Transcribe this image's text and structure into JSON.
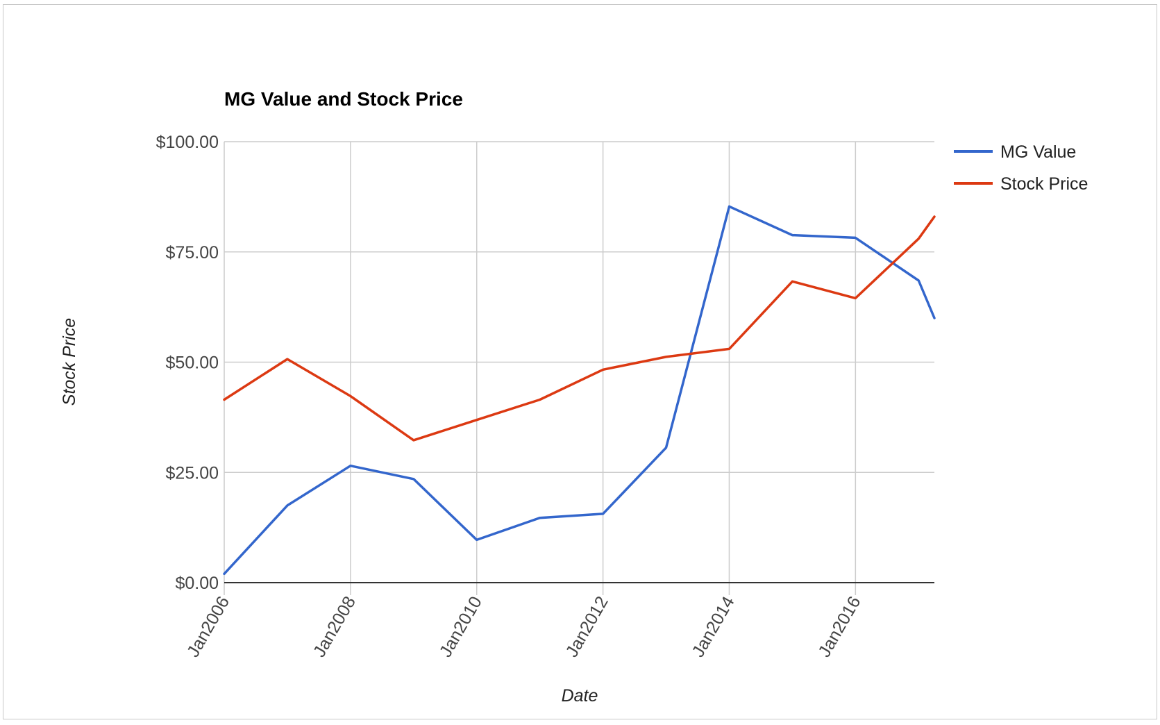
{
  "chart_data": {
    "type": "line",
    "title": "MG Value and Stock Price",
    "xlabel": "Date",
    "ylabel": "Stock Price",
    "ylim": [
      0,
      100
    ],
    "yticks": [
      0,
      25,
      50,
      75,
      100
    ],
    "ytick_labels": [
      "$0.00",
      "$25.00",
      "$50.00",
      "$75.00",
      "$100.00"
    ],
    "xlim": [
      "2006-01",
      "2017-04"
    ],
    "xticks": [
      "2006-01",
      "2008-01",
      "2010-01",
      "2012-01",
      "2014-01",
      "2016-01"
    ],
    "xtick_labels": [
      "Jan2006",
      "Jan2008",
      "Jan2010",
      "Jan2012",
      "Jan2014",
      "Jan2016"
    ],
    "grid": true,
    "legend_position": "right",
    "x": [
      "2006-01",
      "2007-01",
      "2008-01",
      "2009-01",
      "2010-01",
      "2011-01",
      "2012-01",
      "2013-01",
      "2014-01",
      "2015-01",
      "2016-01",
      "2017-01",
      "2017-04"
    ],
    "series": [
      {
        "name": "MG Value",
        "color": "#3366cc",
        "values": [
          2.0,
          17.5,
          26.5,
          23.5,
          9.7,
          14.7,
          15.6,
          30.6,
          85.3,
          78.8,
          78.2,
          68.5,
          60.0
        ]
      },
      {
        "name": "Stock Price",
        "color": "#dc3912",
        "values": [
          41.5,
          50.7,
          42.3,
          32.3,
          36.9,
          41.5,
          48.3,
          51.2,
          53.0,
          68.3,
          64.5,
          78.0,
          83.0
        ]
      }
    ]
  }
}
